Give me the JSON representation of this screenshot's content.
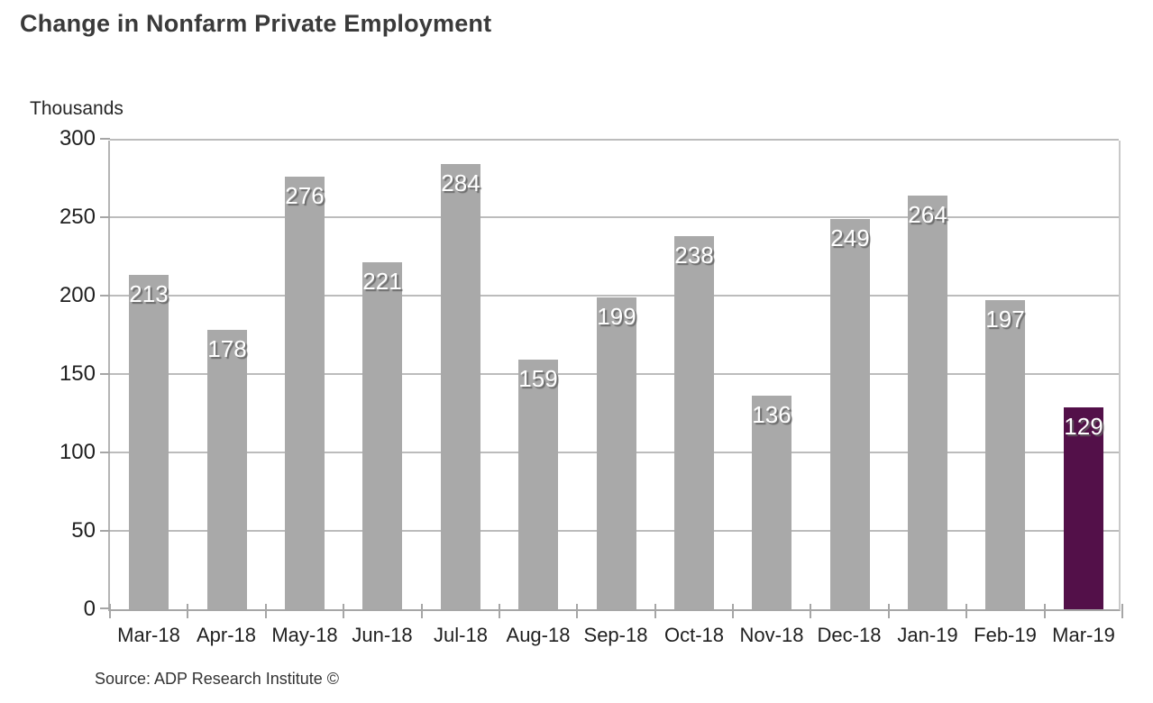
{
  "title": "Change in Nonfarm Private Employment",
  "source": "Source: ADP Research Institute ©",
  "chart_data": {
    "type": "bar",
    "title": "Change in Nonfarm Private Employment",
    "y_unit_label": "Thousands",
    "xlabel": "",
    "ylabel": "Thousands",
    "categories": [
      "Mar-18",
      "Apr-18",
      "May-18",
      "Jun-18",
      "Jul-18",
      "Aug-18",
      "Sep-18",
      "Oct-18",
      "Nov-18",
      "Dec-18",
      "Jan-19",
      "Feb-19",
      "Mar-19"
    ],
    "values": [
      213,
      178,
      276,
      221,
      284,
      159,
      199,
      238,
      136,
      249,
      264,
      197,
      129
    ],
    "ylim": [
      0,
      300
    ],
    "y_ticks": [
      0,
      50,
      100,
      150,
      200,
      250,
      300
    ],
    "grid": true,
    "legend": "none",
    "bar_color": "#a9a9a9",
    "highlight_color": "#531049",
    "highlight_category": "Mar-19",
    "highlight_index": 12,
    "value_label_color": "#ffffff"
  }
}
